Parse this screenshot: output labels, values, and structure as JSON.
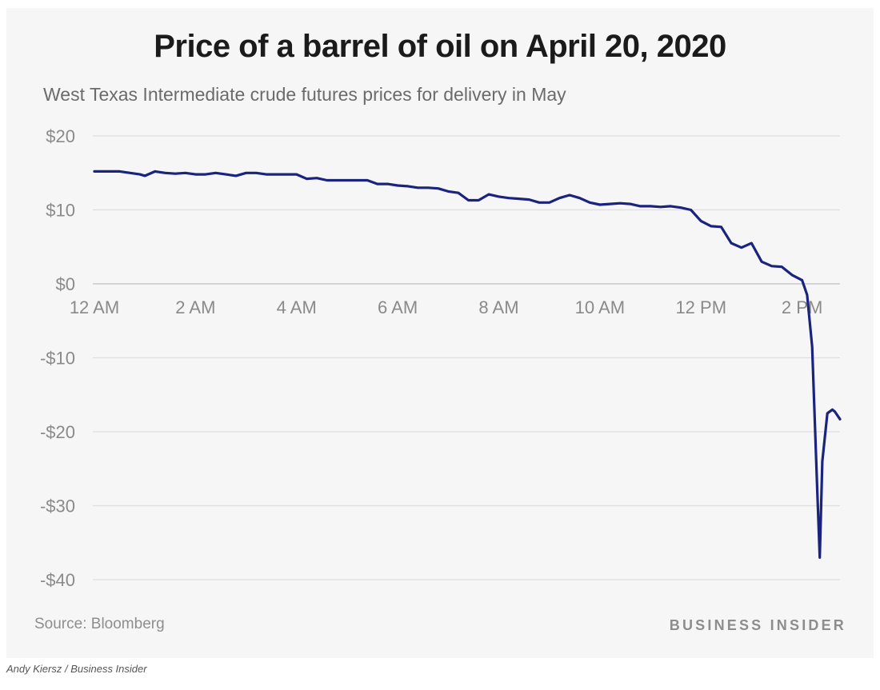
{
  "chart_data": {
    "type": "line",
    "title": "Price of a barrel of oil on April 20, 2020",
    "subtitle": "West Texas Intermediate crude futures prices for delivery in May",
    "y_ticks": [
      {
        "value": 20,
        "label": "$20"
      },
      {
        "value": 10,
        "label": "$10"
      },
      {
        "value": 0,
        "label": "$0"
      },
      {
        "value": -10,
        "label": "-$10"
      },
      {
        "value": -20,
        "label": "-$20"
      },
      {
        "value": -30,
        "label": "-$30"
      },
      {
        "value": -40,
        "label": "-$40"
      }
    ],
    "x_ticks": [
      {
        "value": 0,
        "label": "12 AM"
      },
      {
        "value": 2,
        "label": "2 AM"
      },
      {
        "value": 4,
        "label": "4 AM"
      },
      {
        "value": 6,
        "label": "6 AM"
      },
      {
        "value": 8,
        "label": "8 AM"
      },
      {
        "value": 10,
        "label": "10 AM"
      },
      {
        "value": 12,
        "label": "12 PM"
      },
      {
        "value": 14,
        "label": "2 PM"
      }
    ],
    "xlim": [
      0,
      14.75
    ],
    "ylim": [
      -40,
      20
    ],
    "x_unit": "hours after midnight",
    "grid": true,
    "line_color": "#1a237e",
    "series": [
      {
        "x": [
          0,
          0.5,
          0.9,
          1.0,
          1.2,
          1.4,
          1.6,
          1.8,
          2.0,
          2.2,
          2.4,
          2.6,
          2.8,
          3.0,
          3.2,
          3.4,
          3.6,
          3.8,
          4.0,
          4.2,
          4.4,
          4.6,
          4.8,
          5.0,
          5.2,
          5.4,
          5.6,
          5.8,
          6.0,
          6.2,
          6.4,
          6.6,
          6.8,
          7.0,
          7.2,
          7.4,
          7.6,
          7.8,
          8.0,
          8.2,
          8.4,
          8.6,
          8.8,
          9.0,
          9.2,
          9.4,
          9.6,
          9.8,
          10.0,
          10.2,
          10.4,
          10.6,
          10.8,
          11.0,
          11.2,
          11.4,
          11.6,
          11.8,
          12.0,
          12.2,
          12.4,
          12.6,
          12.8,
          13.0,
          13.2,
          13.4,
          13.6,
          13.8,
          14.0,
          14.1,
          14.2,
          14.3,
          14.35,
          14.4,
          14.5,
          14.6,
          14.65,
          14.75
        ],
        "y": [
          15.2,
          15.2,
          14.8,
          14.6,
          15.2,
          15.0,
          14.9,
          15.0,
          14.8,
          14.8,
          15.0,
          14.8,
          14.6,
          15.0,
          15.0,
          14.8,
          14.8,
          14.8,
          14.8,
          14.2,
          14.3,
          14.0,
          14.0,
          14.0,
          14.0,
          14.0,
          13.5,
          13.5,
          13.3,
          13.2,
          13.0,
          13.0,
          12.9,
          12.5,
          12.3,
          11.3,
          11.3,
          12.1,
          11.8,
          11.6,
          11.5,
          11.4,
          11.0,
          11.0,
          11.6,
          12.0,
          11.6,
          11.0,
          10.7,
          10.8,
          10.9,
          10.8,
          10.5,
          10.5,
          10.4,
          10.5,
          10.3,
          10.0,
          8.5,
          7.8,
          7.7,
          5.5,
          4.9,
          5.5,
          3.0,
          2.4,
          2.3,
          1.2,
          0.5,
          -1.5,
          -8.5,
          -28.0,
          -37.0,
          -24.0,
          -17.5,
          -17.0,
          -17.3,
          -18.3
        ]
      }
    ],
    "source_label": "Source:",
    "source_value": "Bloomberg",
    "brand": "BUSINESS INSIDER",
    "credit": "Andy Kiersz / Business Insider"
  }
}
